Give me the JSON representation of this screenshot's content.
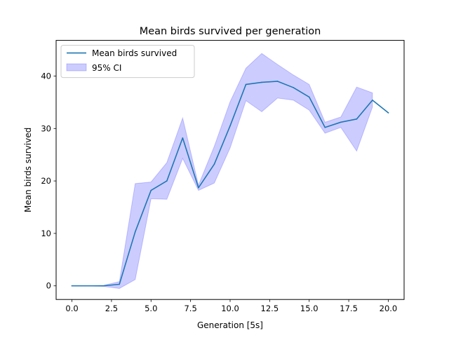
{
  "chart_data": {
    "type": "line",
    "title": "Mean birds survived per generation",
    "xlabel": "Generation [5s]",
    "ylabel": "Mean birds survived",
    "xlim": [
      -1.0,
      21.0
    ],
    "ylim": [
      -2.6,
      46.8
    ],
    "x_ticks": [
      0.0,
      2.5,
      5.0,
      7.5,
      10.0,
      12.5,
      15.0,
      17.5,
      20.0
    ],
    "x_tick_labels": [
      "0.0",
      "2.5",
      "5.0",
      "7.5",
      "10.0",
      "12.5",
      "15.0",
      "17.5",
      "20.0"
    ],
    "y_ticks": [
      0,
      10,
      20,
      30,
      40
    ],
    "y_tick_labels": [
      "0",
      "10",
      "20",
      "30",
      "40"
    ],
    "grid": false,
    "legend_position": "top-left",
    "x": [
      0,
      1,
      2,
      3,
      4,
      5,
      6,
      7,
      8,
      9,
      10,
      11,
      12,
      13,
      14,
      15,
      16,
      17,
      18,
      19,
      20
    ],
    "series": [
      {
        "name": "Mean birds survived",
        "color": "#1f77b4",
        "values": [
          0,
          0,
          0,
          0.3,
          10.3,
          18.2,
          20.0,
          28.2,
          18.7,
          23.2,
          30.5,
          38.4,
          38.8,
          39.0,
          37.8,
          36.0,
          30.2,
          31.2,
          31.8,
          35.4,
          33.0
        ]
      }
    ],
    "confidence_band": {
      "name": "95% CI",
      "fill_color": "#0000ff",
      "fill_opacity": 0.2,
      "x": [
        0,
        1,
        2,
        3,
        4,
        5,
        6,
        7,
        8,
        9,
        10,
        11,
        12,
        13,
        14,
        15,
        16,
        17,
        18,
        19
      ],
      "lower": [
        0,
        0,
        -0.1,
        -0.5,
        1.2,
        16.6,
        16.5,
        24.3,
        18.2,
        19.6,
        26.3,
        35.3,
        33.2,
        35.8,
        35.4,
        33.5,
        29.1,
        30.2,
        25.7,
        34.1
      ],
      "upper": [
        0,
        0,
        0.1,
        0.8,
        19.5,
        19.8,
        23.5,
        32.0,
        19.2,
        26.6,
        35.1,
        41.5,
        44.3,
        42.2,
        40.2,
        38.4,
        31.2,
        32.2,
        37.9,
        36.8
      ]
    }
  }
}
